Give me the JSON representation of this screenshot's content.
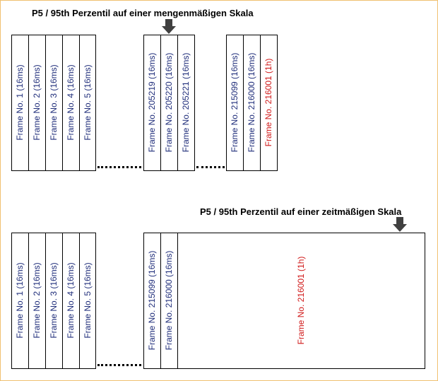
{
  "colors": {
    "normal": "#1f2d7a",
    "highlight": "#d01818"
  },
  "top": {
    "title": "P5 / 95th Perzentil auf einer mengenmäßigen Skala",
    "group1": [
      "Frame No. 1 (16ms)",
      "Frame No. 2 (16ms)",
      "Frame No. 3 (16ms)",
      "Frame No. 4 (16ms)",
      "Frame No. 5 (16ms)"
    ],
    "group2": [
      "Frame No. 205219 (16ms)",
      "Frame No. 205220 (16ms)",
      "Frame No. 205221 (16ms)"
    ],
    "group3": [
      "Frame No. 215099 (16ms)",
      "Frame No. 216000 (16ms)",
      "Frame No. 216001 (1h)"
    ]
  },
  "bottom": {
    "title": "P5 / 95th Perzentil auf einer zeitmäßigen Skala",
    "group1": [
      "Frame No. 1 (16ms)",
      "Frame No. 2 (16ms)",
      "Frame No. 3 (16ms)",
      "Frame No. 4 (16ms)",
      "Frame No. 5 (16ms)"
    ],
    "group2": [
      "Frame No. 215099 (16ms)",
      "Frame No. 216000 (16ms)"
    ],
    "long_frame": "Frame No. 216001 (1h)"
  }
}
